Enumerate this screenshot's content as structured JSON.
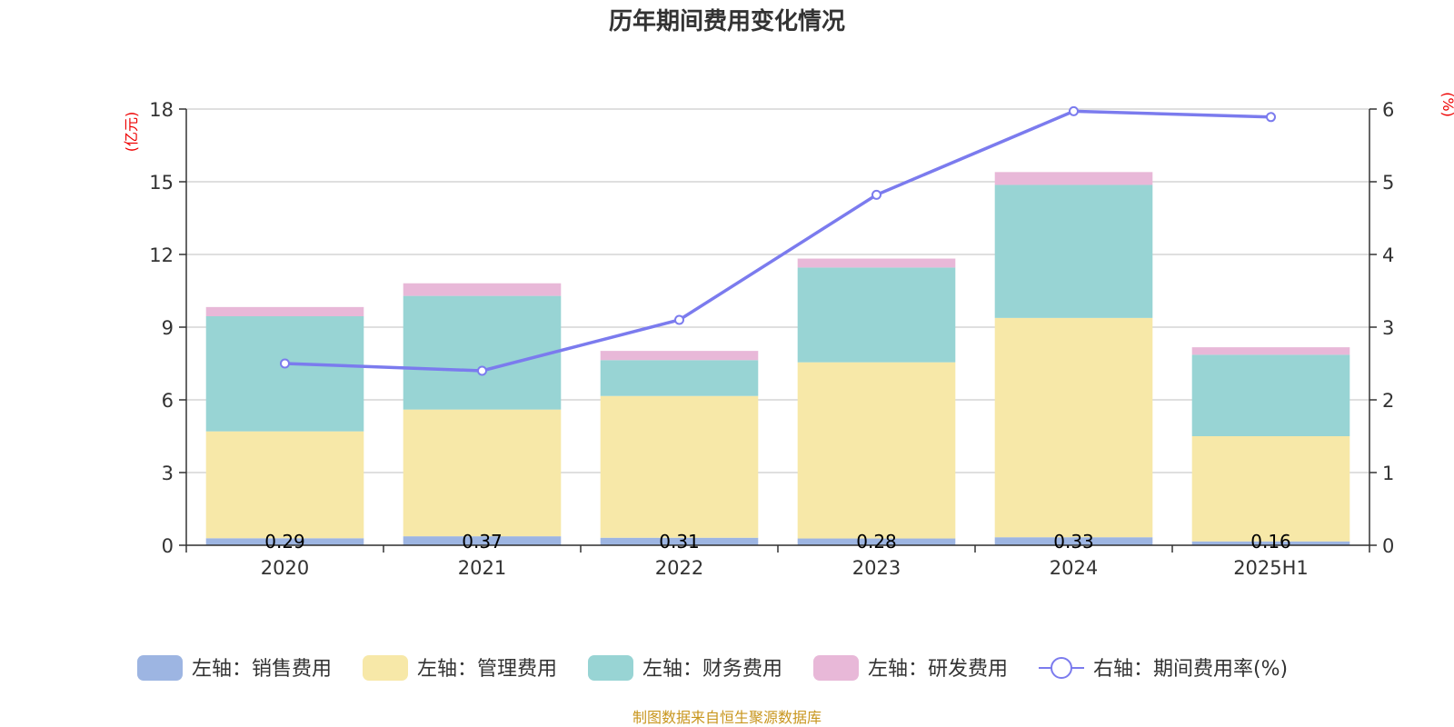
{
  "chart_data": {
    "type": "bar",
    "title": "历年期间费用变化情况",
    "source": "制图数据来自恒生聚源数据库",
    "categories": [
      "2020",
      "2021",
      "2022",
      "2023",
      "2024",
      "2025H1"
    ],
    "left_axis": {
      "unit": "(亿元)",
      "ylim": [
        0,
        18
      ],
      "ticks": [
        "0",
        "3",
        "6",
        "9",
        "12",
        "15",
        "18"
      ]
    },
    "right_axis": {
      "unit": "(%)",
      "ylim": [
        0,
        6
      ],
      "ticks": [
        "0",
        "1",
        "2",
        "3",
        "4",
        "5",
        "6"
      ]
    },
    "series": [
      {
        "name": "左轴：销售费用",
        "type": "bar",
        "stack": true,
        "color": "#9db5e2",
        "values": [
          0.29,
          0.37,
          0.31,
          0.28,
          0.33,
          0.16
        ],
        "labels": [
          "0.29",
          "0.37",
          "0.31",
          "0.28",
          "0.33",
          "0.16"
        ]
      },
      {
        "name": "左轴：管理费用",
        "type": "bar",
        "stack": true,
        "color": "#f7e8a8",
        "values": [
          4.41,
          5.23,
          5.85,
          7.27,
          9.05,
          4.34
        ]
      },
      {
        "name": "左轴：财务费用",
        "type": "bar",
        "stack": true,
        "color": "#98d4d4",
        "values": [
          4.75,
          4.69,
          1.48,
          3.91,
          5.49,
          3.36
        ]
      },
      {
        "name": "左轴：研发费用",
        "type": "bar",
        "stack": true,
        "color": "#e8b8d8",
        "values": [
          0.38,
          0.52,
          0.38,
          0.37,
          0.53,
          0.31
        ]
      },
      {
        "name": "右轴：期间费用率(%)",
        "type": "line",
        "axis": "right",
        "color": "#7b7bee",
        "values": [
          2.5,
          2.4,
          3.1,
          4.82,
          5.97,
          5.89
        ]
      }
    ],
    "grid": true,
    "legend_position": "bottom"
  },
  "colors": {
    "unit_label": "#ee0000",
    "source": "#c8961e",
    "grid": "#cccccc",
    "axis": "#333333"
  }
}
